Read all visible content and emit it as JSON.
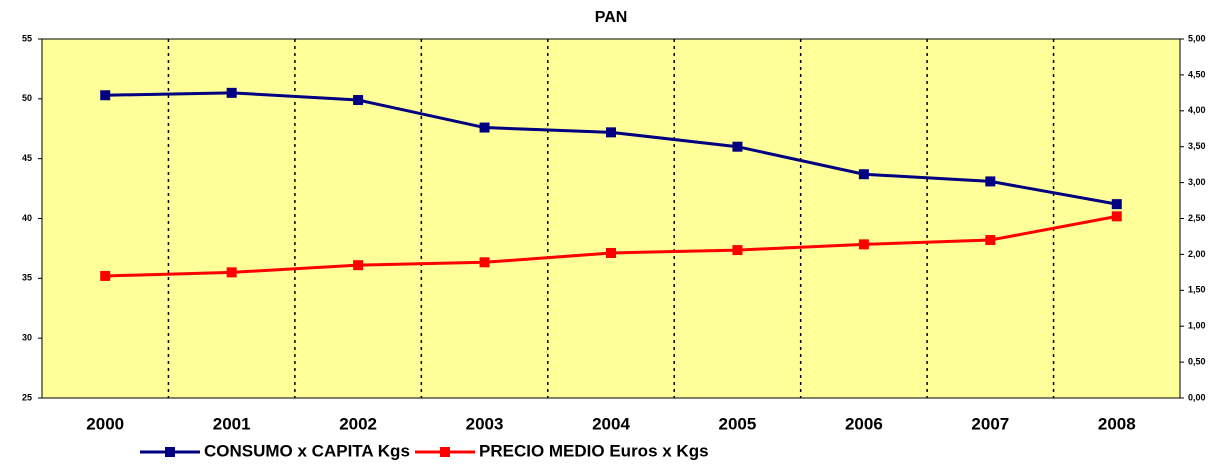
{
  "chart_data": {
    "type": "line",
    "title": "PAN",
    "categories": [
      "2000",
      "2001",
      "2002",
      "2003",
      "2004",
      "2005",
      "2006",
      "2007",
      "2008"
    ],
    "series": [
      {
        "name": "CONSUMO x CAPITA Kgs",
        "color": "#000080",
        "values": [
          50.3,
          50.5,
          49.9,
          47.6,
          47.2,
          46.0,
          43.7,
          43.1,
          41.2
        ]
      },
      {
        "name": "PRECIO MEDIO Euros x Kgs",
        "color": "#ff0000",
        "axis": "y2",
        "values": [
          1.7,
          1.75,
          1.85,
          1.89,
          2.02,
          2.06,
          2.14,
          2.2,
          2.53
        ]
      }
    ],
    "ylim": [
      25,
      55
    ],
    "yticks": [
      25,
      30,
      35,
      40,
      45,
      50,
      55
    ],
    "y2lim": [
      0,
      5
    ],
    "y2ticks": [
      {
        "value": 0,
        "label": "0,00"
      },
      {
        "value": 0.5,
        "label": "0,50"
      },
      {
        "value": 1,
        "label": "1,00"
      },
      {
        "value": 1.5,
        "label": "1,50"
      },
      {
        "value": 2,
        "label": "2,00"
      },
      {
        "value": 2.5,
        "label": "2,50"
      },
      {
        "value": 3,
        "label": "3,00"
      },
      {
        "value": 3.5,
        "label": "3,50"
      },
      {
        "value": 4,
        "label": "4,00"
      },
      {
        "value": 4.5,
        "label": "4,50"
      },
      {
        "value": 5,
        "label": "5,00"
      }
    ],
    "plot_background": "#ffff99",
    "legend": "bottom"
  }
}
